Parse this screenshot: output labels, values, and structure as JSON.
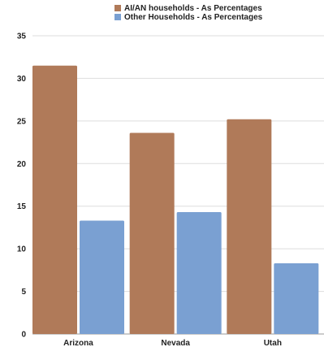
{
  "chart_data": {
    "type": "bar",
    "categories": [
      "Arizona",
      "Nevada",
      "Utah"
    ],
    "series": [
      {
        "name": "AI/AN households - As Percentages",
        "values": [
          31.5,
          23.6,
          25.2
        ],
        "color": "#b07a59"
      },
      {
        "name": "Other Households - As Percentages",
        "values": [
          13.3,
          14.3,
          8.3
        ],
        "color": "#7aa0d2"
      }
    ],
    "ylim": [
      0,
      35
    ],
    "yticks": [
      0,
      5,
      10,
      15,
      20,
      25,
      30,
      35
    ],
    "grid": true,
    "legend_position": "top-center"
  }
}
